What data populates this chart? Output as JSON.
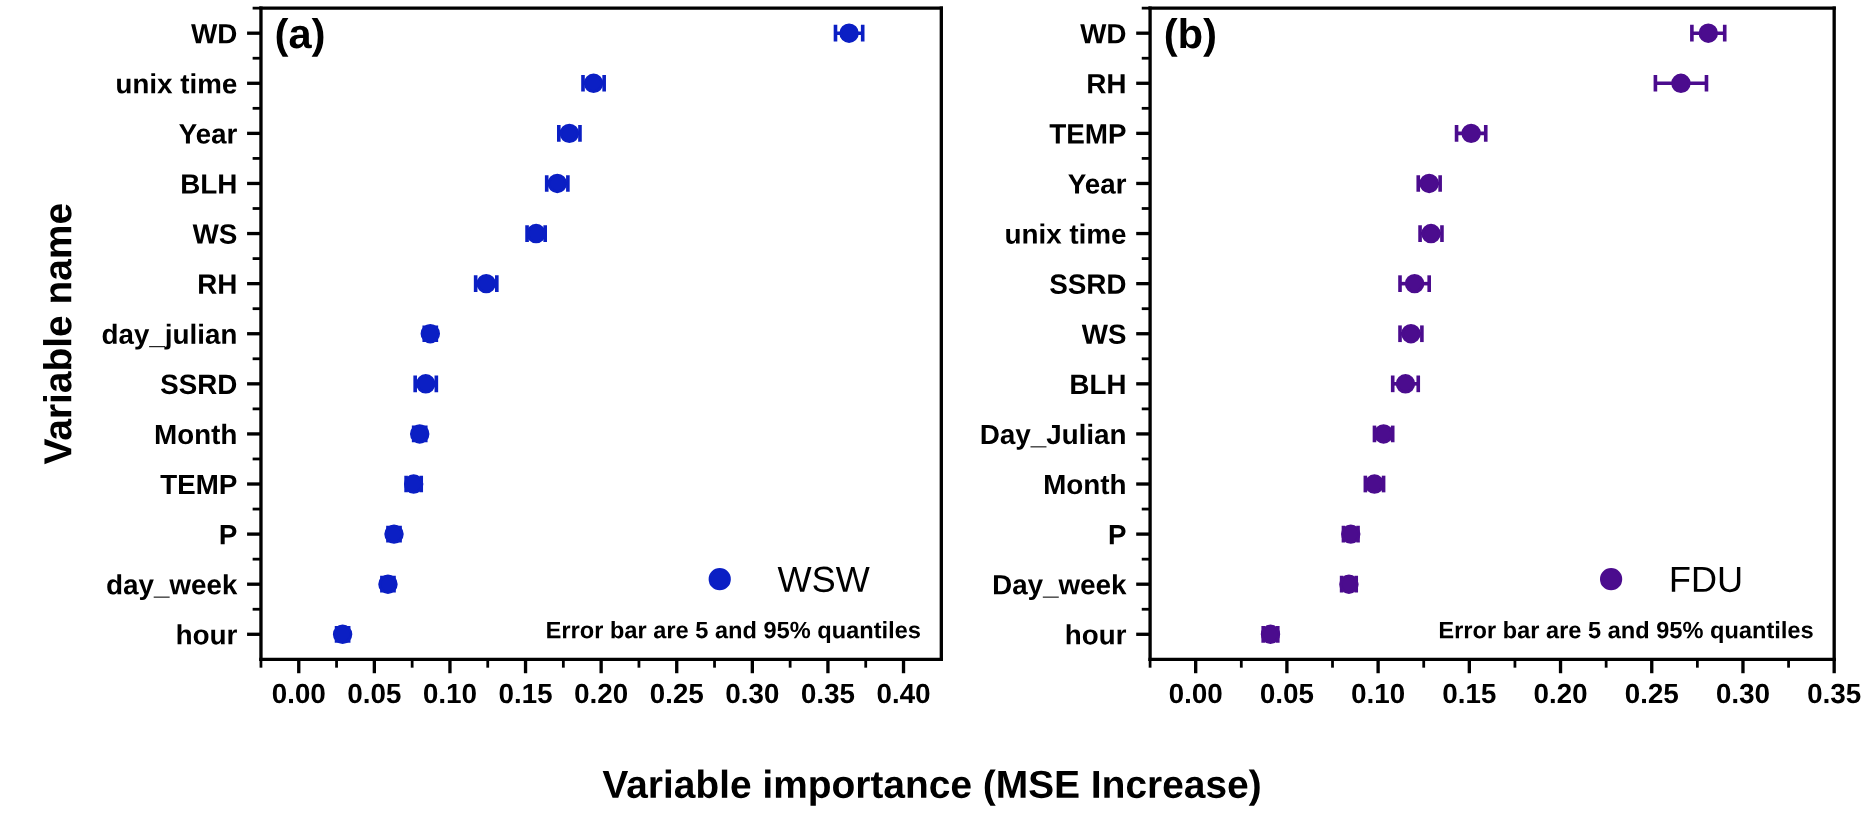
{
  "chart_data": [
    {
      "type": "scatter",
      "orientation": "horizontal",
      "title": "(a)",
      "ylabel": "Variable name",
      "xlabel": "Variable importance (MSE Increase)",
      "categories": [
        "WD",
        "unix time",
        "Year",
        "BLH",
        "WS",
        "RH",
        "day_julian",
        "SSRD",
        "Month",
        "TEMP",
        "P",
        "day_week",
        "hour"
      ],
      "series": [
        {
          "name": "WSW",
          "color": "#0b1fc4",
          "values": [
            0.364,
            0.195,
            0.179,
            0.171,
            0.157,
            0.124,
            0.087,
            0.084,
            0.08,
            0.076,
            0.063,
            0.059,
            0.029
          ],
          "errors": [
            0.009,
            0.007,
            0.007,
            0.007,
            0.006,
            0.007,
            0.004,
            0.007,
            0.004,
            0.005,
            0.004,
            0.004,
            0.004
          ]
        }
      ],
      "xlim": [
        -0.025,
        0.425
      ],
      "xticks": [
        {
          "value": 0,
          "label": "0.00"
        },
        0.05,
        {
          "value": 0.1,
          "label": "0.10"
        },
        0.15,
        {
          "value": 0.2,
          "label": "0.20"
        },
        0.25,
        {
          "value": 0.3,
          "label": "0.30"
        },
        0.35,
        {
          "value": 0.4,
          "label": "0.40"
        }
      ],
      "marker": "circle",
      "legend": "bottom right",
      "grid": false,
      "annotations": [
        "Error bar are 5 and 95% quantiles"
      ]
    },
    {
      "type": "scatter",
      "orientation": "horizontal",
      "title": "(b)",
      "categories": [
        "WD",
        "RH",
        "TEMP",
        "Year",
        "unix time",
        "SSRD",
        "WS",
        "BLH",
        "Day_Julian",
        "Month",
        "P",
        "Day_week",
        "hour"
      ],
      "series": [
        {
          "name": "FDU",
          "color": "#4b0c8e",
          "values": [
            0.281,
            0.266,
            0.151,
            0.128,
            0.129,
            0.12,
            0.118,
            0.115,
            0.103,
            0.098,
            0.085,
            0.084,
            0.041
          ],
          "errors": [
            0.009,
            0.014,
            0.008,
            0.006,
            0.006,
            0.008,
            0.006,
            0.007,
            0.005,
            0.005,
            0.004,
            0.004,
            0.004
          ]
        }
      ],
      "xlim": [
        -0.025,
        0.35
      ],
      "xticks": [
        {
          "value": 0,
          "label": "0.00"
        },
        0.05,
        {
          "value": 0.1,
          "label": "0.10"
        },
        0.15,
        {
          "value": 0.2,
          "label": "0.20"
        },
        0.25,
        {
          "value": 0.3,
          "label": "0.30"
        },
        0.35
      ],
      "marker": "circle",
      "legend": "bottom right",
      "grid": false,
      "annotations": [
        "Error bar are 5 and 95% quantiles"
      ]
    }
  ]
}
